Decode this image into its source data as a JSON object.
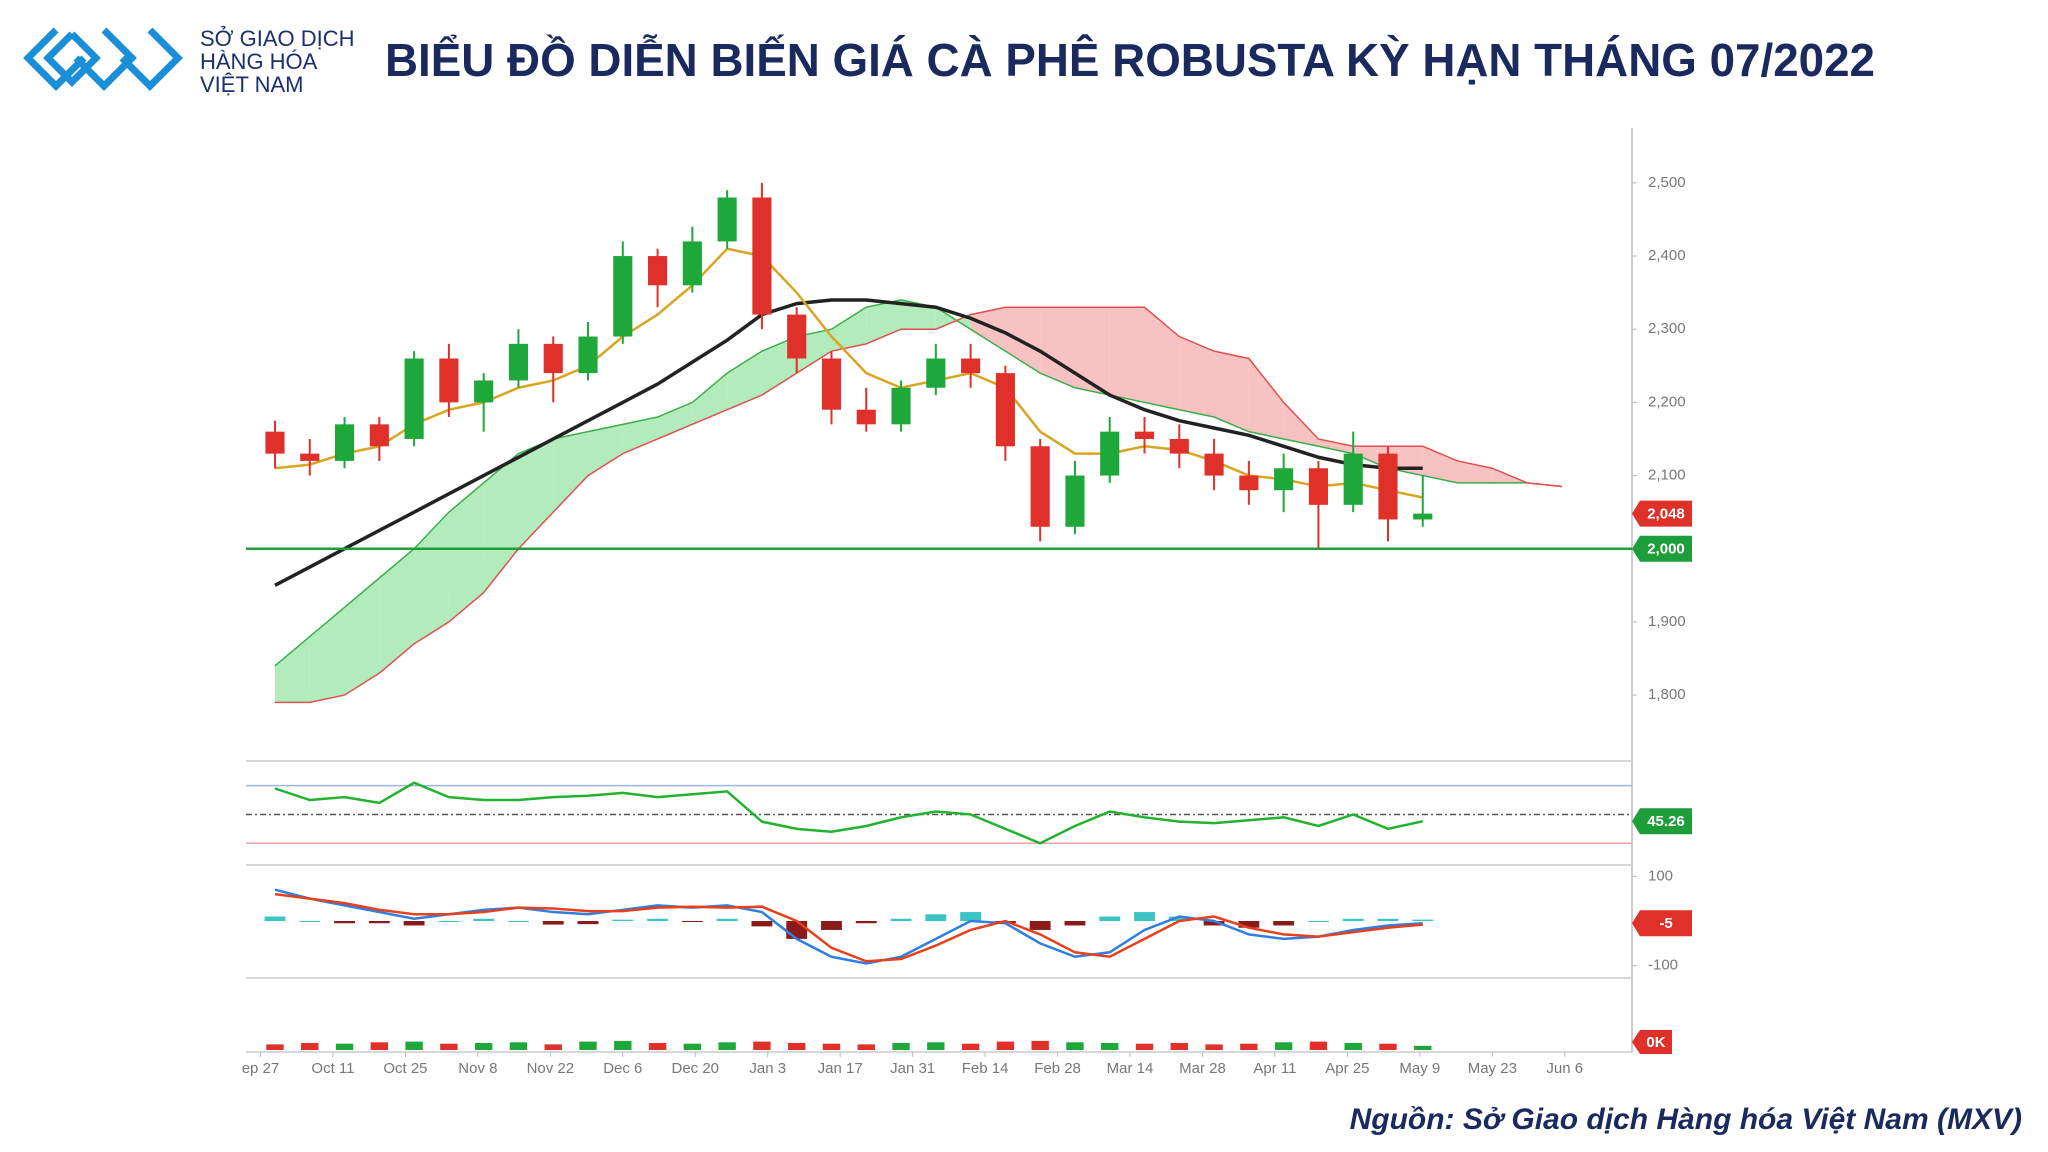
{
  "header": {
    "logo_lines": [
      "SỞ GIAO DỊCH",
      "HÀNG HÓA",
      "VIỆT NAM"
    ],
    "title": "BIỂU ĐỒ DIỄN BIẾN GIÁ CÀ PHÊ ROBUSTA KỲ HẠN THÁNG 07/2022"
  },
  "source": "Nguồn: Sở Giao dịch Hàng hóa Việt Nam (MXV)",
  "chart_data": [
    {
      "type": "candlestick",
      "x": [
        2,
        6.8,
        11.6,
        16.4,
        21.2,
        26,
        30.8,
        35.6,
        40.4,
        45.2,
        50,
        54.8,
        59.6,
        64.4,
        69.2,
        74,
        78.8,
        83.6,
        88.4,
        93.2,
        98,
        102.8,
        107.6,
        112.4,
        117.2,
        122,
        126.8,
        131.6,
        136.4,
        141.2,
        146,
        150.8,
        155.6,
        160.4
      ],
      "open": [
        2160,
        2130,
        2120,
        2170,
        2150,
        2260,
        2200,
        2230,
        2280,
        2240,
        2290,
        2400,
        2360,
        2420,
        2480,
        2320,
        2260,
        2190,
        2170,
        2220,
        2260,
        2240,
        2140,
        2030,
        2100,
        2160,
        2150,
        2130,
        2100,
        2080,
        2110,
        2060,
        2130,
        2040
      ],
      "high": [
        2175,
        2150,
        2180,
        2180,
        2270,
        2280,
        2240,
        2300,
        2290,
        2310,
        2420,
        2410,
        2440,
        2490,
        2500,
        2330,
        2270,
        2220,
        2230,
        2280,
        2280,
        2250,
        2150,
        2120,
        2180,
        2180,
        2170,
        2150,
        2120,
        2130,
        2120,
        2160,
        2140,
        2100
      ],
      "low": [
        2110,
        2100,
        2110,
        2120,
        2140,
        2180,
        2160,
        2220,
        2200,
        2230,
        2280,
        2330,
        2350,
        2410,
        2300,
        2240,
        2170,
        2160,
        2160,
        2210,
        2220,
        2120,
        2010,
        2020,
        2090,
        2130,
        2110,
        2080,
        2060,
        2050,
        2000,
        2050,
        2010,
        2030
      ],
      "close": [
        2130,
        2120,
        2170,
        2140,
        2260,
        2200,
        2230,
        2280,
        2240,
        2290,
        2400,
        2360,
        2420,
        2480,
        2320,
        2260,
        2190,
        2170,
        2220,
        2260,
        2240,
        2140,
        2030,
        2100,
        2160,
        2150,
        2130,
        2100,
        2080,
        2110,
        2060,
        2130,
        2040,
        2048
      ],
      "up_color": "#1fa83a",
      "down_color": "#e0302a",
      "series": [
        {
          "color": "#222222",
          "values": [
            1950,
            1975,
            2000,
            2025,
            2050,
            2075,
            2100,
            2125,
            2150,
            2175,
            2200,
            2225,
            2255,
            2285,
            2320,
            2335,
            2340,
            2340,
            2335,
            2330,
            2315,
            2295,
            2270,
            2240,
            2210,
            2190,
            2175,
            2165,
            2155,
            2140,
            2125,
            2115,
            2110,
            2110
          ]
        },
        {
          "color": "#d9a520",
          "values": [
            2110,
            2115,
            2130,
            2140,
            2170,
            2190,
            2200,
            2220,
            2230,
            2250,
            2290,
            2320,
            2360,
            2410,
            2400,
            2350,
            2290,
            2240,
            2220,
            2230,
            2240,
            2220,
            2160,
            2130,
            2130,
            2140,
            2135,
            2120,
            2100,
            2095,
            2085,
            2090,
            2080,
            2070
          ]
        }
      ],
      "cloud": {
        "x": [
          2,
          6.8,
          11.6,
          16.4,
          21.2,
          26,
          30.8,
          35.6,
          40.4,
          45.2,
          50,
          54.8,
          59.6,
          64.4,
          69.2,
          74,
          78.8,
          83.6,
          88.4,
          93.2,
          98,
          102.8,
          107.6,
          112.4,
          117.2,
          122,
          126.8,
          131.6,
          136.4,
          141.2,
          146,
          150.8,
          155.6,
          160.4,
          165.2,
          170,
          174.8,
          179.6
        ],
        "span_a": [
          1840,
          1880,
          1920,
          1960,
          2000,
          2050,
          2090,
          2130,
          2150,
          2160,
          2170,
          2180,
          2200,
          2240,
          2270,
          2290,
          2300,
          2330,
          2340,
          2330,
          2300,
          2270,
          2240,
          2220,
          2210,
          2200,
          2190,
          2180,
          2160,
          2150,
          2140,
          2130,
          2110,
          2100,
          2090,
          2090,
          2090,
          2085
        ],
        "span_b": [
          1790,
          1790,
          1800,
          1830,
          1870,
          1900,
          1940,
          2000,
          2050,
          2100,
          2130,
          2150,
          2170,
          2190,
          2210,
          2240,
          2270,
          2280,
          2300,
          2300,
          2320,
          2330,
          2330,
          2330,
          2330,
          2330,
          2290,
          2270,
          2260,
          2200,
          2150,
          2140,
          2140,
          2140,
          2120,
          2110,
          2090,
          2085
        ],
        "up_color": "#7fe08f",
        "down_color": "#f59a9a"
      },
      "xlim": [
        -2,
        189
      ],
      "xticks": [
        {
          "value": 0,
          "label": "ep 27"
        },
        {
          "value": 10,
          "label": "Oct 11"
        },
        {
          "value": 20,
          "label": "Oct 25"
        },
        {
          "value": 30,
          "label": "Nov 8"
        },
        {
          "value": 40,
          "label": "Nov 22"
        },
        {
          "value": 50,
          "label": "Dec 6"
        },
        {
          "value": 60,
          "label": "Dec 20"
        },
        {
          "value": 70,
          "label": "Jan 3"
        },
        {
          "value": 80,
          "label": "Jan 17"
        },
        {
          "value": 90,
          "label": "Jan 31"
        },
        {
          "value": 100,
          "label": "Feb 14"
        },
        {
          "value": 110,
          "label": "Feb 28"
        },
        {
          "value": 120,
          "label": "Mar 14"
        },
        {
          "value": 130,
          "label": "Mar 28"
        },
        {
          "value": 140,
          "label": "Apr 11"
        },
        {
          "value": 150,
          "label": "Apr 25"
        },
        {
          "value": 160,
          "label": "May 9"
        },
        {
          "value": 170,
          "label": "May 23"
        },
        {
          "value": 180,
          "label": "Jun 6"
        }
      ],
      "ylim": [
        1714,
        2575
      ],
      "yticks": [
        {
          "value": 2500,
          "label": "2,500"
        },
        {
          "value": 2400,
          "label": "2,400"
        },
        {
          "value": 2300,
          "label": "2,300"
        },
        {
          "value": 2200,
          "label": "2,200"
        },
        {
          "value": 2100,
          "label": "2,100"
        },
        {
          "value": 2000,
          "label": "2,000"
        },
        {
          "value": 1900,
          "label": "1,900"
        },
        {
          "value": 1800,
          "label": "1,800"
        }
      ],
      "markers": [
        {
          "value": 2048,
          "label": "2,048",
          "color": "#e0302a",
          "line": false
        },
        {
          "value": 2000,
          "label": "2,000",
          "color": "#1e9e3a",
          "line": true
        }
      ]
    },
    {
      "type": "line",
      "series": [
        {
          "color": "#22b22e",
          "values": [
            68,
            60,
            62,
            58,
            72,
            62,
            60,
            60,
            62,
            63,
            65,
            62,
            64,
            66,
            45,
            40,
            38,
            42,
            48,
            52,
            50,
            40,
            30,
            42,
            52,
            48,
            45,
            44,
            46,
            48,
            42,
            50,
            40,
            45.26
          ]
        }
      ],
      "ylim": [
        17,
        85
      ],
      "levels": [
        {
          "value": 70,
          "color": "#9bb7e6",
          "dash": false
        },
        {
          "value": 50,
          "color": "#555555",
          "dash": true
        },
        {
          "value": 30,
          "color": "#f0a0a8",
          "dash": false
        }
      ],
      "markers": [
        {
          "value": 45.26,
          "color": "#1e9e3a"
        }
      ]
    },
    {
      "type": "macd",
      "series": [
        {
          "color": "#2f7fe0",
          "values": [
            70,
            50,
            35,
            20,
            5,
            15,
            25,
            30,
            20,
            15,
            25,
            35,
            30,
            35,
            20,
            -40,
            -80,
            -95,
            -80,
            -40,
            0,
            -5,
            -50,
            -80,
            -70,
            -20,
            10,
            0,
            -30,
            -40,
            -35,
            -20,
            -10,
            -5
          ]
        },
        {
          "color": "#e8401c",
          "values": [
            60,
            50,
            40,
            25,
            15,
            15,
            20,
            30,
            28,
            22,
            22,
            30,
            32,
            30,
            32,
            0,
            -60,
            -90,
            -85,
            -55,
            -20,
            0,
            -30,
            -70,
            -80,
            -40,
            0,
            10,
            -15,
            -30,
            -35,
            -25,
            -15,
            -8
          ]
        }
      ],
      "histogram": {
        "values": [
          10,
          0,
          -5,
          -5,
          -10,
          0,
          5,
          0,
          -8,
          -7,
          3,
          5,
          -2,
          5,
          -12,
          -40,
          -20,
          -5,
          5,
          15,
          20,
          -5,
          -20,
          -10,
          10,
          20,
          10,
          -10,
          -15,
          -10,
          0,
          5,
          5,
          3
        ],
        "up_color": "#3cc4c4",
        "down_color": "#8b1a1a"
      },
      "ylim": [
        -123,
        123
      ],
      "yticks": [
        100,
        -100
      ],
      "markers": [
        {
          "value": -5,
          "color": "#e0302a"
        }
      ]
    },
    {
      "type": "bar",
      "values": [
        8,
        10,
        9,
        11,
        12,
        9,
        10,
        11,
        8,
        12,
        13,
        10,
        9,
        11,
        12,
        10,
        9,
        8,
        10,
        11,
        9,
        12,
        13,
        11,
        10,
        9,
        10,
        8,
        9,
        11,
        12,
        10,
        9,
        6
      ],
      "ylim": [
        0,
        100
      ],
      "markers": [
        {
          "value": 0,
          "label": "0K",
          "color": "#e0302a"
        }
      ]
    }
  ]
}
